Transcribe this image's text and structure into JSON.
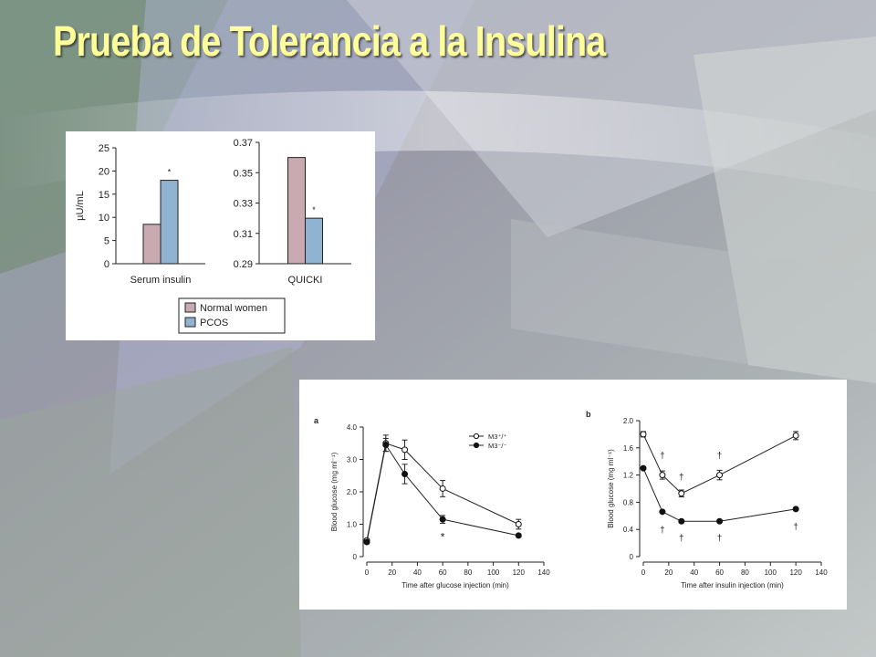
{
  "slide": {
    "title": "Prueba de Tolerancia a la Insulina"
  },
  "colors": {
    "normal_women": "#c9aab1",
    "pcos": "#8fb3d1",
    "title": "#ffff99"
  },
  "chart_data": [
    {
      "type": "bar",
      "panel": "serum-insulin",
      "categories": [
        "Serum insulin"
      ],
      "ylabel": "µU/mL",
      "ylim": [
        0,
        25
      ],
      "yticks": [
        0,
        5,
        10,
        15,
        20,
        25
      ],
      "series": [
        {
          "name": "Normal women",
          "values": [
            8.5
          ]
        },
        {
          "name": "PCOS",
          "values": [
            18
          ]
        }
      ],
      "annotations": [
        "*"
      ]
    },
    {
      "type": "bar",
      "panel": "quicki",
      "categories": [
        "QUICKI"
      ],
      "ylim": [
        0.29,
        0.37
      ],
      "yticks": [
        "0.29",
        "0.31",
        "0.33",
        "0.35",
        "0.37"
      ],
      "series": [
        {
          "name": "Normal women",
          "values": [
            0.36
          ]
        },
        {
          "name": "PCOS",
          "values": [
            0.32
          ]
        }
      ],
      "annotations": [
        "*"
      ],
      "legend": {
        "position": "bottom-right",
        "entries": [
          "Normal women",
          "PCOS"
        ]
      }
    },
    {
      "type": "line",
      "panel_label": "a",
      "xlabel": "Time after glucose injection (min)",
      "ylabel": "Blood glucose (mg ml⁻¹)",
      "xlim": [
        0,
        140
      ],
      "ylim": [
        0,
        4
      ],
      "xticks": [
        0,
        20,
        40,
        60,
        80,
        100,
        120,
        140
      ],
      "yticks": [
        "0",
        "1.0",
        "2.0",
        "3.0",
        "4.0"
      ],
      "legend": {
        "position": "top-right",
        "entries": [
          "M3⁺/⁺",
          "M3⁻/⁻"
        ]
      },
      "series": [
        {
          "name": "M3⁺/⁺",
          "marker": "open",
          "x": [
            0,
            15,
            30,
            60,
            120
          ],
          "y": [
            0.5,
            3.5,
            3.3,
            2.1,
            1.0
          ],
          "err": [
            0.05,
            0.25,
            0.3,
            0.25,
            0.15
          ]
        },
        {
          "name": "M3⁻/⁻",
          "marker": "filled",
          "x": [
            0,
            15,
            30,
            60,
            120
          ],
          "y": [
            0.45,
            3.45,
            2.55,
            1.15,
            0.65
          ],
          "err": [
            0.05,
            0.2,
            0.3,
            0.12,
            0.05
          ]
        }
      ],
      "annotations": [
        {
          "text": "*",
          "x": 60
        }
      ]
    },
    {
      "type": "line",
      "panel_label": "b",
      "xlabel": "Time after insulin injection (min)",
      "ylabel": "Blood glucose (mg ml⁻¹)",
      "xlim": [
        0,
        140
      ],
      "ylim": [
        0,
        2
      ],
      "xticks": [
        0,
        20,
        40,
        60,
        80,
        100,
        120,
        140
      ],
      "yticks": [
        "0",
        "0.4",
        "0.8",
        "1.2",
        "1.6",
        "2.0"
      ],
      "series": [
        {
          "marker": "open",
          "x": [
            0,
            15,
            30,
            60,
            120
          ],
          "y": [
            1.8,
            1.2,
            0.93,
            1.2,
            1.78
          ],
          "err": [
            0.04,
            0.06,
            0.05,
            0.07,
            0.06
          ]
        },
        {
          "marker": "filled",
          "x": [
            0,
            15,
            30,
            60,
            120
          ],
          "y": [
            1.3,
            0.66,
            0.52,
            0.52,
            0.7
          ],
          "err": [
            0.02,
            0.02,
            0.02,
            0.02,
            0.02
          ]
        }
      ],
      "annotations": [
        {
          "text": "†",
          "x": 15,
          "y": 1.5
        },
        {
          "text": "†",
          "x": 30,
          "y": 1.18
        },
        {
          "text": "†",
          "x": 60,
          "y": 1.5
        },
        {
          "text": "†",
          "x": 15,
          "y": 0.4
        },
        {
          "text": "†",
          "x": 30,
          "y": 0.28
        },
        {
          "text": "†",
          "x": 60,
          "y": 0.28
        },
        {
          "text": "†",
          "x": 120,
          "y": 0.45
        }
      ]
    }
  ]
}
